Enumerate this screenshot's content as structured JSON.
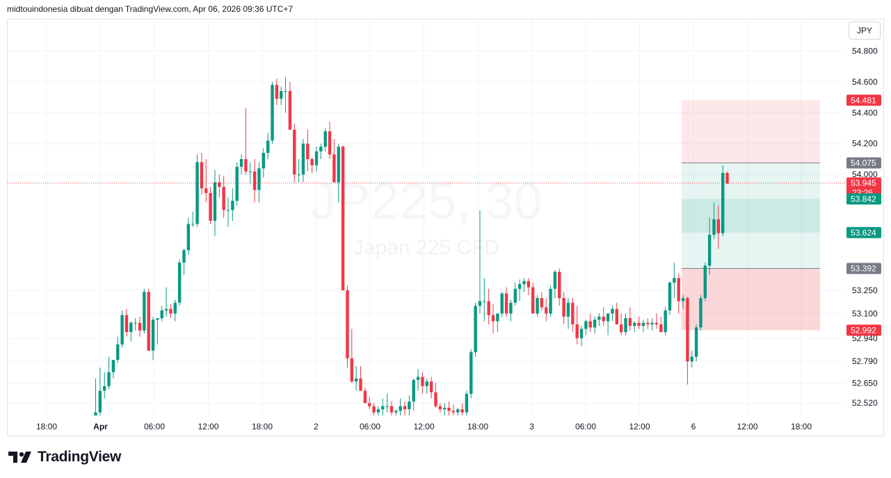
{
  "header": {
    "text": "midtouindonesia dibuat dengan TradingView.com, Apr 06, 2026 09:36 UTC+7"
  },
  "currency_button": {
    "label": "JPY"
  },
  "watermark": {
    "symbol": "JP225, 30",
    "description": "Japan 225 CFD"
  },
  "footer": {
    "brand": "TradingView"
  },
  "colors": {
    "up": "#089981",
    "down": "#f23645",
    "grid": "#f0f3fa",
    "stop_zone": "#f23645",
    "target_zone": "#089981",
    "neutral_tag": "#787b86"
  },
  "chart_data": {
    "type": "candlestick",
    "title": "JP225, 30",
    "subtitle": "Japan 225 CFD",
    "ylim": [
      52.44,
      54.86
    ],
    "y_ticks": [
      "54.800",
      "54.600",
      "54.400",
      "54.200",
      "54.000",
      "53.250",
      "53.100",
      "52.940",
      "52.790",
      "52.650",
      "52.520"
    ],
    "x_ticks": [
      {
        "label": "18:00",
        "bold": false
      },
      {
        "label": "Apr",
        "bold": true
      },
      {
        "label": "06:00",
        "bold": false
      },
      {
        "label": "12:00",
        "bold": false
      },
      {
        "label": "18:00",
        "bold": false
      },
      {
        "label": "2",
        "bold": false
      },
      {
        "label": "06:00",
        "bold": false
      },
      {
        "label": "12:00",
        "bold": false
      },
      {
        "label": "18:00",
        "bold": false
      },
      {
        "label": "3",
        "bold": false
      },
      {
        "label": "06:00",
        "bold": false
      },
      {
        "label": "12:00",
        "bold": false
      },
      {
        "label": "6",
        "bold": false
      },
      {
        "label": "12:00",
        "bold": false
      },
      {
        "label": "18:00",
        "bold": false
      }
    ],
    "price_line": 53.945,
    "countdown": "23:26",
    "position": {
      "target_top": 54.481,
      "stop_bottom": 52.992,
      "target_1": 54.075,
      "entry_zone_high": 53.842,
      "entry_zone_low": 53.624,
      "stop_1": 53.392
    },
    "price_tags": [
      {
        "value": "54.481",
        "kind": "down"
      },
      {
        "value": "54.075",
        "kind": "neutral"
      },
      {
        "value": "53.945",
        "kind": "down"
      },
      {
        "value": "53.842",
        "kind": "up"
      },
      {
        "value": "53.624",
        "kind": "up"
      },
      {
        "value": "53.392",
        "kind": "neutral"
      },
      {
        "value": "52.992",
        "kind": "down"
      }
    ],
    "candles": [
      [
        52.44,
        52.68,
        52.44,
        52.46
      ],
      [
        52.46,
        52.75,
        52.44,
        52.6
      ],
      [
        52.6,
        52.72,
        52.55,
        52.63
      ],
      [
        52.63,
        52.82,
        52.61,
        52.72
      ],
      [
        52.72,
        52.8,
        52.68,
        52.8
      ],
      [
        52.8,
        52.95,
        52.78,
        52.9
      ],
      [
        52.9,
        53.12,
        52.88,
        53.09
      ],
      [
        53.09,
        53.13,
        52.95,
        52.98
      ],
      [
        52.98,
        53.05,
        52.92,
        53.04
      ],
      [
        53.04,
        53.07,
        52.99,
        53.04
      ],
      [
        53.04,
        53.08,
        52.95,
        52.99
      ],
      [
        52.99,
        53.26,
        52.97,
        53.24
      ],
      [
        53.24,
        53.26,
        52.86,
        52.86
      ],
      [
        52.86,
        53.08,
        52.8,
        53.06
      ],
      [
        53.06,
        53.07,
        52.9,
        53.07
      ],
      [
        53.07,
        53.15,
        53.05,
        53.12
      ],
      [
        53.12,
        53.27,
        53.08,
        53.13
      ],
      [
        53.13,
        53.16,
        53.07,
        53.1
      ],
      [
        53.1,
        53.19,
        53.05,
        53.17
      ],
      [
        53.17,
        53.45,
        53.15,
        53.43
      ],
      [
        53.43,
        53.52,
        53.35,
        53.51
      ],
      [
        53.51,
        53.72,
        53.48,
        53.68
      ],
      [
        53.68,
        53.76,
        53.66,
        53.68
      ],
      [
        53.68,
        54.13,
        53.66,
        54.08
      ],
      [
        54.08,
        54.14,
        53.87,
        53.91
      ],
      [
        53.91,
        54.1,
        53.82,
        53.88
      ],
      [
        53.88,
        53.92,
        53.68,
        53.7
      ],
      [
        53.7,
        54.03,
        53.6,
        53.95
      ],
      [
        53.95,
        54.0,
        53.85,
        53.92
      ],
      [
        53.92,
        53.99,
        53.72,
        53.77
      ],
      [
        53.77,
        53.85,
        53.66,
        53.77
      ],
      [
        53.77,
        53.91,
        53.7,
        53.83
      ],
      [
        53.83,
        54.08,
        53.8,
        54.05
      ],
      [
        54.05,
        54.13,
        54.0,
        54.1
      ],
      [
        54.1,
        54.43,
        54.0,
        54.02
      ],
      [
        54.02,
        54.08,
        53.94,
        54.02
      ],
      [
        54.02,
        54.1,
        53.82,
        53.9
      ],
      [
        53.9,
        54.08,
        53.82,
        54.04
      ],
      [
        54.04,
        54.17,
        53.98,
        54.14
      ],
      [
        54.14,
        54.27,
        54.1,
        54.22
      ],
      [
        54.22,
        54.6,
        54.2,
        54.58
      ],
      [
        54.58,
        54.62,
        54.45,
        54.49
      ],
      [
        54.49,
        54.57,
        54.45,
        54.54
      ],
      [
        54.54,
        54.63,
        54.4,
        54.54
      ],
      [
        54.54,
        54.6,
        54.29,
        54.29
      ],
      [
        54.29,
        54.33,
        53.95,
        54.0
      ],
      [
        54.0,
        54.1,
        53.95,
        54.0
      ],
      [
        54.0,
        54.23,
        53.95,
        54.2
      ],
      [
        54.2,
        54.29,
        54.02,
        54.1
      ],
      [
        54.1,
        54.11,
        54.01,
        54.06
      ],
      [
        54.06,
        54.18,
        54.02,
        54.15
      ],
      [
        54.15,
        54.2,
        54.1,
        54.18
      ],
      [
        54.18,
        54.3,
        54.15,
        54.28
      ],
      [
        54.28,
        54.34,
        54.1,
        54.13
      ],
      [
        54.13,
        54.23,
        53.95,
        53.95
      ],
      [
        53.95,
        54.2,
        53.82,
        54.18
      ],
      [
        54.18,
        54.19,
        53.25,
        53.25
      ],
      [
        53.25,
        53.28,
        52.75,
        52.81
      ],
      [
        52.81,
        53.0,
        52.65,
        52.66
      ],
      [
        52.66,
        52.76,
        52.6,
        52.68
      ],
      [
        52.68,
        52.76,
        52.6,
        52.6
      ],
      [
        52.6,
        52.62,
        52.52,
        52.52
      ],
      [
        52.52,
        52.56,
        52.48,
        52.5
      ],
      [
        52.5,
        52.52,
        52.44,
        52.46
      ],
      [
        52.46,
        52.5,
        52.44,
        52.48
      ],
      [
        52.48,
        52.55,
        52.44,
        52.5
      ],
      [
        52.5,
        52.58,
        52.46,
        52.5
      ],
      [
        52.5,
        52.53,
        52.44,
        52.46
      ],
      [
        52.46,
        52.48,
        52.44,
        52.47
      ],
      [
        52.47,
        52.55,
        52.44,
        52.5
      ],
      [
        52.5,
        52.53,
        52.44,
        52.48
      ],
      [
        52.48,
        52.57,
        52.44,
        52.53
      ],
      [
        52.53,
        52.68,
        52.47,
        52.67
      ],
      [
        52.67,
        52.74,
        52.6,
        52.69
      ],
      [
        52.69,
        52.72,
        52.58,
        52.63
      ],
      [
        52.63,
        52.68,
        52.58,
        52.66
      ],
      [
        52.66,
        52.69,
        52.55,
        52.59
      ],
      [
        52.59,
        52.65,
        52.49,
        52.5
      ],
      [
        52.5,
        52.52,
        52.46,
        52.48
      ],
      [
        52.48,
        52.52,
        52.44,
        52.49
      ],
      [
        52.49,
        52.53,
        52.44,
        52.47
      ],
      [
        52.47,
        52.51,
        52.44,
        52.46
      ],
      [
        52.46,
        52.49,
        52.44,
        52.48
      ],
      [
        52.48,
        52.52,
        52.44,
        52.46
      ],
      [
        52.46,
        52.6,
        52.44,
        52.58
      ],
      [
        52.58,
        52.87,
        52.55,
        52.85
      ],
      [
        52.85,
        53.17,
        52.82,
        53.15
      ],
      [
        53.15,
        53.77,
        53.1,
        53.18
      ],
      [
        53.18,
        53.33,
        53.05,
        53.18
      ],
      [
        53.18,
        53.26,
        53.03,
        53.09
      ],
      [
        53.09,
        53.16,
        52.97,
        53.05
      ],
      [
        53.05,
        53.1,
        52.98,
        53.1
      ],
      [
        53.1,
        53.24,
        53.08,
        53.23
      ],
      [
        53.23,
        53.27,
        53.08,
        53.1
      ],
      [
        53.1,
        53.19,
        53.05,
        53.17
      ],
      [
        53.17,
        53.3,
        53.15,
        53.26
      ],
      [
        53.26,
        53.32,
        53.18,
        53.29
      ],
      [
        53.29,
        53.33,
        53.24,
        53.31
      ],
      [
        53.31,
        53.33,
        53.22,
        53.27
      ],
      [
        53.27,
        53.3,
        53.1,
        53.1
      ],
      [
        53.1,
        53.22,
        53.08,
        53.2
      ],
      [
        53.2,
        53.24,
        53.12,
        53.14
      ],
      [
        53.14,
        53.2,
        53.05,
        53.1
      ],
      [
        53.1,
        53.28,
        53.08,
        53.26
      ],
      [
        53.26,
        53.38,
        53.2,
        53.37
      ],
      [
        53.37,
        53.39,
        53.15,
        53.2
      ],
      [
        53.2,
        53.24,
        53.03,
        53.08
      ],
      [
        53.08,
        53.2,
        53.0,
        53.17
      ],
      [
        53.17,
        53.2,
        52.98,
        53.03
      ],
      [
        53.03,
        53.15,
        52.9,
        52.94
      ],
      [
        52.94,
        53.02,
        52.89,
        53.0
      ],
      [
        53.0,
        53.06,
        52.96,
        53.05
      ],
      [
        53.05,
        53.1,
        52.98,
        53.01
      ],
      [
        53.01,
        53.08,
        52.97,
        53.06
      ],
      [
        53.06,
        53.1,
        53.02,
        53.08
      ],
      [
        53.08,
        53.14,
        53.02,
        53.05
      ],
      [
        53.05,
        53.1,
        52.96,
        53.1
      ],
      [
        53.1,
        53.15,
        53.05,
        53.13
      ],
      [
        53.13,
        53.17,
        53.03,
        53.03
      ],
      [
        53.03,
        53.1,
        52.96,
        52.98
      ],
      [
        52.98,
        53.1,
        52.96,
        53.07
      ],
      [
        53.07,
        53.14,
        52.99,
        53.02
      ],
      [
        53.02,
        53.05,
        52.98,
        53.04
      ],
      [
        53.04,
        53.08,
        53.0,
        53.02
      ],
      [
        53.02,
        53.06,
        52.98,
        53.04
      ],
      [
        53.04,
        53.07,
        53.0,
        53.03
      ],
      [
        53.03,
        53.07,
        52.99,
        53.04
      ],
      [
        53.04,
        53.1,
        53.0,
        53.03
      ],
      [
        53.03,
        53.08,
        52.98,
        52.98
      ],
      [
        52.98,
        53.14,
        52.96,
        53.12
      ],
      [
        53.12,
        53.31,
        53.09,
        53.3
      ],
      [
        53.3,
        53.43,
        53.2,
        53.33
      ],
      [
        53.33,
        53.36,
        53.1,
        53.18
      ],
      [
        53.18,
        53.22,
        53.13,
        53.2
      ],
      [
        53.2,
        53.21,
        52.64,
        52.79
      ],
      [
        52.79,
        52.86,
        52.75,
        52.82
      ],
      [
        52.82,
        53.03,
        52.79,
        53.01
      ],
      [
        53.01,
        53.22,
        52.99,
        53.2
      ],
      [
        53.2,
        53.43,
        53.18,
        53.41
      ],
      [
        53.41,
        53.72,
        53.35,
        53.61
      ],
      [
        53.61,
        53.82,
        53.58,
        53.71
      ],
      [
        53.71,
        53.8,
        53.52,
        53.62
      ],
      [
        53.62,
        54.06,
        53.6,
        54.01
      ],
      [
        54.01,
        54.02,
        53.95,
        53.94
      ]
    ]
  }
}
